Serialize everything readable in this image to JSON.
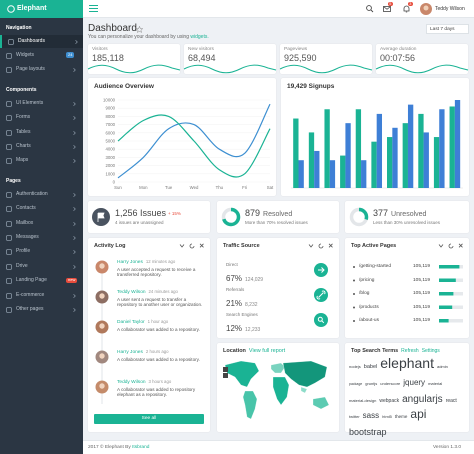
{
  "sidebar": {
    "brand": "Elephant",
    "sections": [
      {
        "title": "Navigation",
        "items": [
          {
            "label": "Dashboards"
          },
          {
            "label": "Widgets",
            "badge": "24",
            "badge_color": "#3e8ed0"
          },
          {
            "label": "Page layouts"
          }
        ]
      },
      {
        "title": "Components",
        "items": [
          {
            "label": "UI Elements"
          },
          {
            "label": "Forms"
          },
          {
            "label": "Tables"
          },
          {
            "label": "Charts"
          },
          {
            "label": "Maps"
          }
        ]
      },
      {
        "title": "Pages",
        "items": [
          {
            "label": "Authentication"
          },
          {
            "label": "Contacts"
          },
          {
            "label": "Mailbox"
          },
          {
            "label": "Messages"
          },
          {
            "label": "Profile"
          },
          {
            "label": "Drive"
          },
          {
            "label": "Landing Page",
            "badge": "new",
            "badge_color": "#e74c3c"
          },
          {
            "label": "E-commerce"
          },
          {
            "label": "Other pages"
          }
        ]
      }
    ]
  },
  "topbar": {
    "user": "Teddy Wilson",
    "mail_badge": "5",
    "bell_badge": "3"
  },
  "header": {
    "title": "Dashboard",
    "subtitle": "You can personalize your dashboard by using ",
    "subtitle_link": "widgets.",
    "range": "Last 7 days"
  },
  "stats": [
    {
      "label": "Visitors",
      "value": "185,118"
    },
    {
      "label": "New visitors",
      "value": "68,494"
    },
    {
      "label": "Pageviews",
      "value": "925,590"
    },
    {
      "label": "Average duration",
      "value": "00:07:56"
    }
  ],
  "chart_data": [
    {
      "type": "line",
      "title": "Audience Overview",
      "categories": [
        "Sun",
        "Mon",
        "Tue",
        "Wed",
        "Thu",
        "Fri",
        "Sat"
      ],
      "series": [
        {
          "color": "#3d8fd1",
          "values": [
            500,
            3000,
            6500,
            7000,
            4000,
            3500,
            9500
          ]
        },
        {
          "color": "#1ab394",
          "values": [
            5000,
            7500,
            8000,
            5000,
            1500,
            1000,
            6500
          ]
        }
      ],
      "ylim": [
        0,
        10000
      ],
      "yticks": [
        0,
        1000,
        2000,
        3000,
        4000,
        5000,
        6000,
        7000,
        8000,
        9000,
        10000
      ]
    },
    {
      "type": "bar",
      "title": "19,429 Signups",
      "categories": [
        null,
        null,
        null,
        null,
        null,
        null,
        null,
        null,
        null,
        null,
        null
      ],
      "series": [
        {
          "color": "#1ab394",
          "values": [
            75,
            60,
            85,
            35,
            85,
            50,
            55,
            70,
            80,
            55,
            88
          ]
        },
        {
          "color": "#3e7fd6",
          "values": [
            30,
            40,
            30,
            70,
            30,
            80,
            65,
            90,
            60,
            85,
            95
          ]
        }
      ]
    }
  ],
  "widgets": {
    "issues": {
      "count": "1,256 Issues",
      "change": "+ 15%",
      "note": "4 issues are unassigned"
    },
    "resolved": {
      "count": "879",
      "label": "Resolved",
      "note": "More than 70% resolved issues",
      "percent": 70
    },
    "unresolved": {
      "count": "377",
      "label": "Unresolved",
      "note": "Less than 30% unresolved issues",
      "percent": 30
    }
  },
  "activity": {
    "title": "Activity Log",
    "button": "See all",
    "items": [
      {
        "name": "Harry Jones",
        "time": "12 minutes ago",
        "text": "A user accepted a request to receive a transferred repository."
      },
      {
        "name": "Teddy Wilson",
        "time": "24 minutes ago",
        "text": "A user sent a request to transfer a repository to another user or organization."
      },
      {
        "name": "Daniel Taylor",
        "time": "1 hour ago",
        "text": "A collaborator was added to a repository."
      },
      {
        "name": "Harry Jones",
        "time": "2 hours ago",
        "text": "A collaborator was added to a repository."
      },
      {
        "name": "Teddy Wilson",
        "time": "3 hours ago",
        "text": "A collaborator was added to repository elephant as a repository."
      }
    ]
  },
  "traffic": {
    "title": "Traffic Source",
    "items": [
      {
        "label": "Direct",
        "percent": "67%",
        "count": "124,029"
      },
      {
        "label": "Referrals",
        "percent": "21%",
        "count": "8,232"
      },
      {
        "label": "Search Engines",
        "percent": "12%",
        "count": "12,233"
      }
    ]
  },
  "top_pages": {
    "title": "Top Active Pages",
    "rows": [
      {
        "page": "/getting-started",
        "visits": "105,119",
        "share": 85
      },
      {
        "page": "/pricing",
        "visits": "105,119",
        "share": 70
      },
      {
        "page": "/blog",
        "visits": "105,119",
        "share": 60
      },
      {
        "page": "/products",
        "visits": "105,119",
        "share": 55
      },
      {
        "page": "/about-us",
        "visits": "105,119",
        "share": 40
      }
    ]
  },
  "location": {
    "title": "Location",
    "link": "View full report"
  },
  "search_terms": {
    "title": "Top Search Terms",
    "actions": [
      "Refresh",
      "Settings"
    ],
    "terms": [
      "nodejs",
      "babel",
      "elephant",
      "admin",
      "package",
      "gruntjs",
      "underscore",
      "jquery",
      "material",
      "material-design",
      "webpack",
      "angularjs",
      "react",
      "twitter",
      "sass",
      "html5",
      "theme",
      "api",
      "bootstrap"
    ]
  },
  "footer": {
    "left": "2017 © Elephant By ",
    "brand": "Itsbrand",
    "right": "Version 1.3.0"
  }
}
